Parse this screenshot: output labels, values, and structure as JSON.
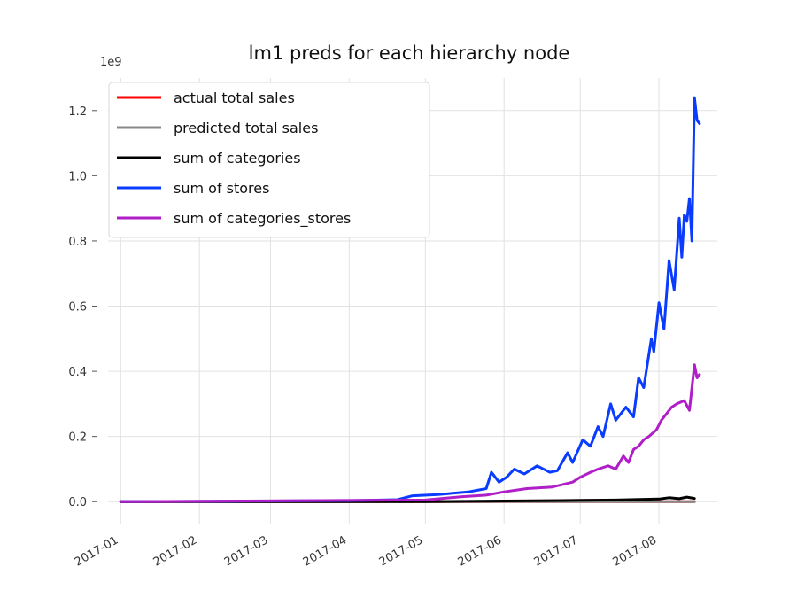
{
  "chart_data": {
    "type": "line",
    "title": "lm1 preds for each hierarchy node",
    "xlabel": "",
    "ylabel": "",
    "y_scale_label": "1e9",
    "x_ticks": [
      "2017-01",
      "2017-02",
      "2017-03",
      "2017-04",
      "2017-05",
      "2017-06",
      "2017-07",
      "2017-08"
    ],
    "y_ticks": [
      "0.0",
      "0.2",
      "0.4",
      "0.6",
      "0.8",
      "1.0",
      "1.2"
    ],
    "xlim": [
      "2016-12-27",
      "2017-08-24"
    ],
    "ylim": [
      -0.07,
      1.3
    ],
    "grid": true,
    "legend_position": "top-left",
    "series": [
      {
        "name": "actual total sales",
        "color": "#ff0000",
        "points": [
          [
            "2017-01-01",
            0.0
          ],
          [
            "2017-08-15",
            0.0
          ]
        ]
      },
      {
        "name": "predicted total sales",
        "color": "#888888",
        "points": [
          [
            "2017-01-01",
            0.0
          ],
          [
            "2017-08-15",
            0.0
          ]
        ]
      },
      {
        "name": "sum of categories",
        "color": "#000000",
        "points": [
          [
            "2017-01-01",
            0.0
          ],
          [
            "2017-05-01",
            0.0
          ],
          [
            "2017-06-01",
            0.002
          ],
          [
            "2017-07-01",
            0.004
          ],
          [
            "2017-07-15",
            0.005
          ],
          [
            "2017-08-01",
            0.008
          ],
          [
            "2017-08-05",
            0.012
          ],
          [
            "2017-08-09",
            0.009
          ],
          [
            "2017-08-12",
            0.014
          ],
          [
            "2017-08-15",
            0.01
          ]
        ]
      },
      {
        "name": "sum of stores",
        "color": "#0a3cff",
        "points": [
          [
            "2017-01-01",
            0.0
          ],
          [
            "2017-04-01",
            0.003
          ],
          [
            "2017-04-20",
            0.006
          ],
          [
            "2017-04-26",
            0.018
          ],
          [
            "2017-05-06",
            0.022
          ],
          [
            "2017-05-18",
            0.03
          ],
          [
            "2017-05-25",
            0.04
          ],
          [
            "2017-05-27",
            0.09
          ],
          [
            "2017-05-30",
            0.06
          ],
          [
            "2017-06-02",
            0.075
          ],
          [
            "2017-06-05",
            0.1
          ],
          [
            "2017-06-09",
            0.085
          ],
          [
            "2017-06-14",
            0.11
          ],
          [
            "2017-06-19",
            0.09
          ],
          [
            "2017-06-22",
            0.095
          ],
          [
            "2017-06-26",
            0.15
          ],
          [
            "2017-06-28",
            0.12
          ],
          [
            "2017-07-02",
            0.19
          ],
          [
            "2017-07-05",
            0.17
          ],
          [
            "2017-07-08",
            0.23
          ],
          [
            "2017-07-10",
            0.2
          ],
          [
            "2017-07-13",
            0.3
          ],
          [
            "2017-07-15",
            0.25
          ],
          [
            "2017-07-19",
            0.29
          ],
          [
            "2017-07-22",
            0.26
          ],
          [
            "2017-07-24",
            0.38
          ],
          [
            "2017-07-26",
            0.35
          ],
          [
            "2017-07-29",
            0.5
          ],
          [
            "2017-07-30",
            0.46
          ],
          [
            "2017-08-01",
            0.61
          ],
          [
            "2017-08-03",
            0.53
          ],
          [
            "2017-08-05",
            0.74
          ],
          [
            "2017-08-07",
            0.65
          ],
          [
            "2017-08-09",
            0.87
          ],
          [
            "2017-08-10",
            0.75
          ],
          [
            "2017-08-11",
            0.88
          ],
          [
            "2017-08-12",
            0.86
          ],
          [
            "2017-08-13",
            0.93
          ],
          [
            "2017-08-14",
            0.8
          ],
          [
            "2017-08-15",
            1.24
          ],
          [
            "2017-08-16",
            1.17
          ],
          [
            "2017-08-17",
            1.16
          ]
        ]
      },
      {
        "name": "sum of categories_stores",
        "color": "#b01ec8",
        "points": [
          [
            "2017-01-01",
            0.0
          ],
          [
            "2017-05-01",
            0.005
          ],
          [
            "2017-05-15",
            0.015
          ],
          [
            "2017-05-25",
            0.02
          ],
          [
            "2017-06-01",
            0.03
          ],
          [
            "2017-06-10",
            0.04
          ],
          [
            "2017-06-20",
            0.045
          ],
          [
            "2017-06-28",
            0.06
          ],
          [
            "2017-07-01",
            0.075
          ],
          [
            "2017-07-05",
            0.09
          ],
          [
            "2017-07-08",
            0.1
          ],
          [
            "2017-07-12",
            0.11
          ],
          [
            "2017-07-15",
            0.1
          ],
          [
            "2017-07-18",
            0.14
          ],
          [
            "2017-07-20",
            0.12
          ],
          [
            "2017-07-22",
            0.16
          ],
          [
            "2017-07-24",
            0.17
          ],
          [
            "2017-07-26",
            0.19
          ],
          [
            "2017-07-28",
            0.2
          ],
          [
            "2017-07-31",
            0.22
          ],
          [
            "2017-08-02",
            0.25
          ],
          [
            "2017-08-04",
            0.27
          ],
          [
            "2017-08-06",
            0.29
          ],
          [
            "2017-08-08",
            0.3
          ],
          [
            "2017-08-11",
            0.31
          ],
          [
            "2017-08-13",
            0.28
          ],
          [
            "2017-08-15",
            0.42
          ],
          [
            "2017-08-16",
            0.38
          ],
          [
            "2017-08-17",
            0.39
          ]
        ]
      }
    ]
  }
}
